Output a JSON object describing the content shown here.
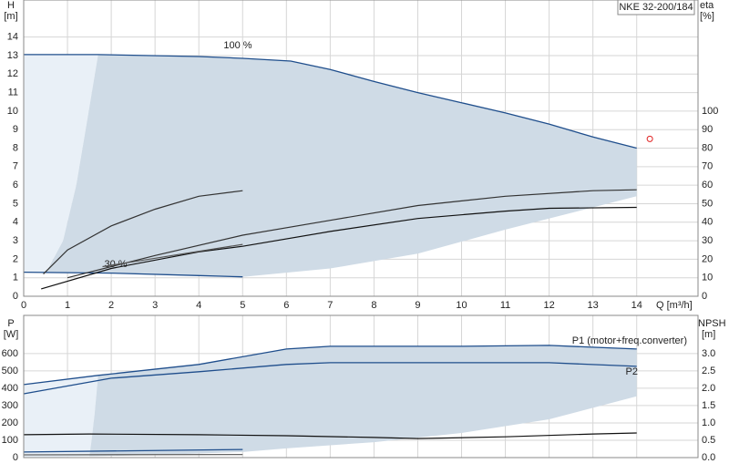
{
  "chart_data": [
    {
      "type": "line",
      "title": "NKE 32-200/184",
      "ylabel": "H",
      "yunit": "[m]",
      "y2label": "eta",
      "y2unit": "[%]",
      "xlabel": "Q [m³/h]",
      "xlim": [
        0,
        15.4
      ],
      "xticks": [
        0,
        1,
        2,
        3,
        4,
        5,
        6,
        7,
        8,
        9,
        10,
        11,
        12,
        13,
        14
      ],
      "ylim": [
        0,
        16
      ],
      "yticks": [
        0,
        1,
        2,
        3,
        4,
        5,
        6,
        7,
        8,
        9,
        10,
        11,
        12,
        13,
        14
      ],
      "y2lim": [
        0,
        160
      ],
      "y2ticks": [
        0,
        10,
        20,
        30,
        40,
        50,
        60,
        70,
        80,
        90,
        100
      ],
      "grid": true,
      "series": [
        {
          "kind": "area",
          "color": "#e9f0f7",
          "x": [
            0,
            1.7,
            1.45,
            1.2,
            0.9,
            0.5,
            0
          ],
          "values": [
            13.05,
            13.05,
            9.5,
            6,
            3,
            1.3,
            1.3
          ]
        },
        {
          "kind": "area",
          "color": "#cfdbe6",
          "x": [
            1.7,
            4,
            5,
            6.1,
            7,
            8,
            9,
            10,
            11,
            12,
            13,
            14,
            14,
            13,
            11,
            9,
            7,
            5,
            4,
            2,
            0.5,
            0.9,
            1.2,
            1.45
          ],
          "values": [
            13.05,
            12.95,
            12.85,
            12.7,
            12.25,
            11.6,
            11,
            10.45,
            9.9,
            9.3,
            8.6,
            8.0,
            5.4,
            4.8,
            3.6,
            2.3,
            1.5,
            1.05,
            1.12,
            1.25,
            1.25,
            3,
            6,
            9.5
          ]
        },
        {
          "name": "100 %",
          "kind": "line",
          "color": "#1f4e8c",
          "x": [
            0,
            1.7,
            4,
            5,
            6.1,
            7,
            8,
            9,
            10,
            11,
            12,
            13,
            14
          ],
          "values": [
            13.05,
            13.05,
            12.95,
            12.85,
            12.7,
            12.25,
            11.6,
            11,
            10.45,
            9.9,
            9.3,
            8.6,
            8.0
          ]
        },
        {
          "name": "30 %",
          "kind": "line",
          "color": "#1f4e8c",
          "x": [
            0,
            2,
            4,
            5
          ],
          "values": [
            1.3,
            1.25,
            1.12,
            1.05
          ]
        },
        {
          "kind": "line",
          "axis": "y2",
          "color": "#333333",
          "x": [
            0.45,
            1,
            2,
            3,
            4,
            5
          ],
          "values": [
            12,
            25,
            38,
            47,
            54,
            57
          ]
        },
        {
          "kind": "line",
          "axis": "y2",
          "color": "#333333",
          "x": [
            1,
            3,
            5,
            7,
            9,
            11,
            13,
            14
          ],
          "values": [
            10,
            22,
            33,
            41,
            49,
            54,
            57,
            57.5
          ]
        },
        {
          "kind": "line",
          "axis": "y2",
          "color": "#111111",
          "x": [
            0.4,
            2,
            4,
            5,
            7,
            9,
            11,
            12,
            14
          ],
          "values": [
            4,
            15,
            24,
            27,
            35,
            42,
            46,
            47.5,
            48
          ]
        },
        {
          "kind": "line",
          "axis": "y2",
          "color": "#555555",
          "x": [
            1.8,
            5
          ],
          "values": [
            16,
            28
          ]
        },
        {
          "kind": "marker",
          "axis": "y2",
          "color": "#e02020",
          "x": [
            14.3
          ],
          "values": [
            85
          ]
        }
      ]
    },
    {
      "type": "line",
      "ylabel": "P",
      "yunit": "[W]",
      "y2label": "NPSH",
      "y2unit": "[m]",
      "xlim": [
        0,
        15.4
      ],
      "xticks": [
        0,
        1,
        2,
        3,
        4,
        5,
        6,
        7,
        8,
        9,
        10,
        11,
        12,
        13,
        14
      ],
      "ylim": [
        0,
        820
      ],
      "yticks": [
        0,
        100,
        200,
        300,
        400,
        500,
        600
      ],
      "y2lim": [
        0,
        4.1
      ],
      "y2ticks": [
        {
          "value": 0,
          "label": "0.0"
        },
        0.5,
        {
          "value": 1,
          "label": "1.0"
        },
        1.5,
        {
          "value": 2,
          "label": "2.0"
        },
        2.5,
        {
          "value": 3,
          "label": "3.0"
        }
      ],
      "grid": true,
      "series": [
        {
          "kind": "area",
          "color": "#e9f0f7",
          "x": [
            0,
            1.7,
            1.62,
            1.55,
            1.5,
            0.5,
            0
          ],
          "values": [
            421,
            474,
            250,
            100,
            8,
            0,
            0
          ]
        },
        {
          "kind": "area",
          "color": "#cfdbe6",
          "x": [
            1.7,
            4,
            6,
            7,
            10,
            12,
            14,
            14,
            12,
            10,
            8,
            6,
            5,
            3,
            1.5,
            1.55,
            1.62
          ],
          "values": [
            474,
            537,
            626,
            642,
            642,
            647,
            626,
            353,
            221,
            142,
            89,
            53,
            32,
            15,
            8,
            100,
            250
          ]
        },
        {
          "name": "P1 (motor+freq.converter)",
          "kind": "line",
          "color": "#1f4e8c",
          "x": [
            0,
            1.7,
            4,
            6,
            7,
            10,
            12,
            14
          ],
          "values": [
            421,
            474,
            537,
            626,
            642,
            642,
            647,
            626
          ]
        },
        {
          "name": "P2",
          "kind": "line",
          "color": "#1f4e8c",
          "x": [
            0,
            2,
            4,
            6,
            7,
            10,
            12,
            14
          ],
          "values": [
            368,
            458,
            495,
            537,
            547,
            547,
            547,
            526
          ]
        },
        {
          "kind": "line",
          "color": "#1f4e8c",
          "x": [
            0,
            5
          ],
          "values": [
            32,
            47
          ]
        },
        {
          "kind": "line",
          "color": "#666666",
          "x": [
            0,
            5
          ],
          "values": [
            16,
            18
          ]
        },
        {
          "kind": "line",
          "axis": "y2",
          "color": "#111111",
          "x": [
            0,
            1.5,
            4,
            6,
            8,
            9,
            11,
            13,
            14
          ],
          "values": [
            0.66,
            0.68,
            0.66,
            0.63,
            0.58,
            0.55,
            0.6,
            0.68,
            0.71
          ]
        }
      ]
    }
  ]
}
